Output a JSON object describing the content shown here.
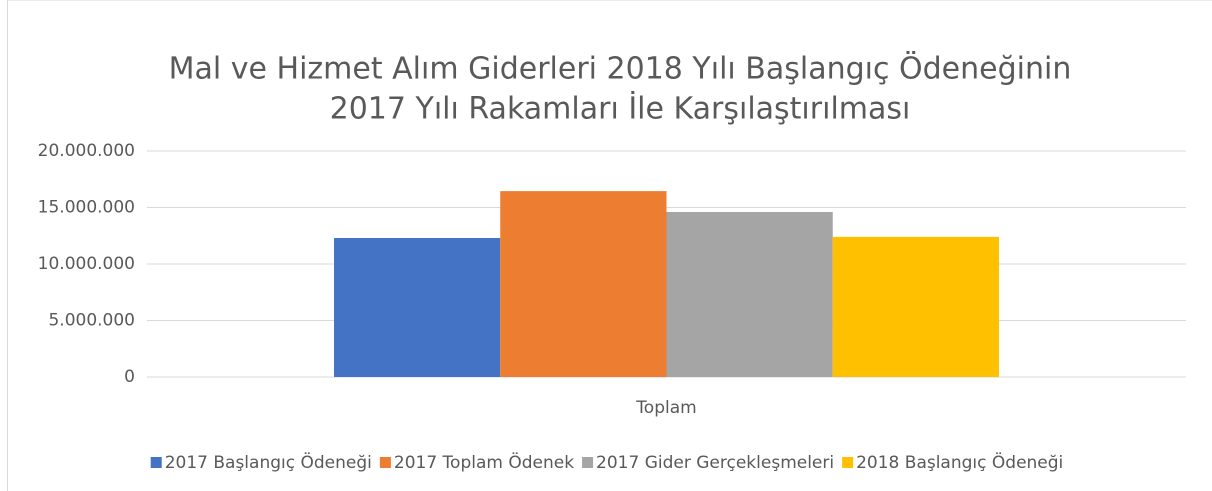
{
  "chart_data": {
    "type": "bar",
    "title": [
      "Mal ve Hizmet Alım Giderleri 2018 Yılı Başlangıç Ödeneğinin",
      "2017 Yılı Rakamları İle Karşılaştırılması"
    ],
    "categories": [
      "Toplam"
    ],
    "series": [
      {
        "name": "2017 Başlangıç Ödeneği",
        "color": "#4472c4",
        "values": [
          12300000
        ]
      },
      {
        "name": "2017 Toplam Ödenek",
        "color": "#ed7d31",
        "values": [
          16450000
        ]
      },
      {
        "name": "2017 Gider Gerçekleşmeleri",
        "color": "#a5a5a5",
        "values": [
          14600000
        ]
      },
      {
        "name": "2018 Başlangıç Ödeneği",
        "color": "#ffc000",
        "values": [
          12400000
        ]
      }
    ],
    "ylim": [
      0,
      20000000
    ],
    "yticks": [
      0,
      {
        "value": 5000000,
        "label": "5.000.000"
      },
      {
        "value": 10000000,
        "label": "10.000.000"
      },
      {
        "value": 15000000,
        "label": "15.000.000"
      },
      {
        "value": 20000000,
        "label": "20.000.000"
      }
    ],
    "grid": true,
    "legend": "bottom"
  }
}
